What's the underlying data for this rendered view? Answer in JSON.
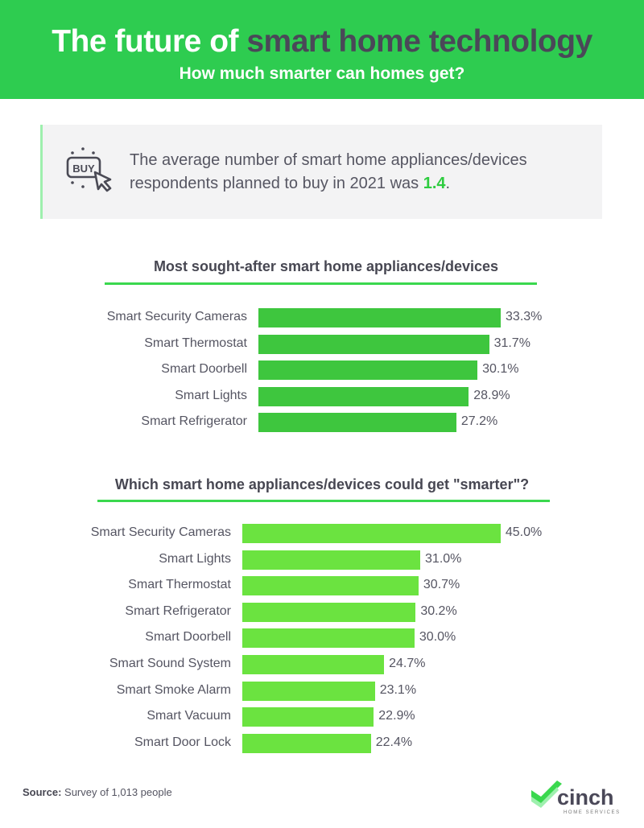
{
  "header": {
    "title_white": "The future of ",
    "title_dark": "smart home technology",
    "subtitle": "How much smarter can homes get?"
  },
  "stat": {
    "icon": "buy-click-icon",
    "icon_text": "BUY",
    "text_before": "The average number of smart home appliances/devices respondents planned to buy in 2021 was ",
    "highlight": "1.4",
    "text_after": "."
  },
  "colors": {
    "header_bg": "#2ecc50",
    "title_dark": "#4a4858",
    "chart1_bar": "#3ec63e",
    "chart2_bar": "#6be340",
    "rule": "#3ad84e",
    "highlight": "#2ecc40"
  },
  "chart_data": [
    {
      "type": "bar",
      "orientation": "horizontal",
      "title": "Most sought-after smart home appliances/devices",
      "categories": [
        "Smart Security Cameras",
        "Smart Thermostat",
        "Smart Doorbell",
        "Smart Lights",
        "Smart Refrigerator"
      ],
      "values": [
        33.3,
        31.7,
        30.1,
        28.9,
        27.2
      ],
      "value_labels": [
        "33.3%",
        "31.7%",
        "30.1%",
        "28.9%",
        "27.2%"
      ],
      "xlabel": "",
      "ylabel": "",
      "grid": false,
      "legend": "none"
    },
    {
      "type": "bar",
      "orientation": "horizontal",
      "title": "Which smart home appliances/devices could get \"smarter\"?",
      "categories": [
        "Smart Security Cameras",
        "Smart Lights",
        "Smart Thermostat",
        "Smart Refrigerator",
        "Smart Doorbell",
        "Smart Sound System",
        "Smart Smoke Alarm",
        "Smart Vacuum",
        "Smart Door Lock"
      ],
      "values": [
        45.0,
        31.0,
        30.7,
        30.2,
        30.0,
        24.7,
        23.1,
        22.9,
        22.4
      ],
      "value_labels": [
        "45.0%",
        "31.0%",
        "30.7%",
        "30.2%",
        "30.0%",
        "24.7%",
        "23.1%",
        "22.9%",
        "22.4%"
      ],
      "xlabel": "",
      "ylabel": "",
      "grid": false,
      "legend": "none"
    }
  ],
  "footer": {
    "source_label": "Source:",
    "source_text": " Survey of 1,013 people",
    "logo_name": "cinch",
    "logo_tagline": "HOME SERVICES"
  }
}
